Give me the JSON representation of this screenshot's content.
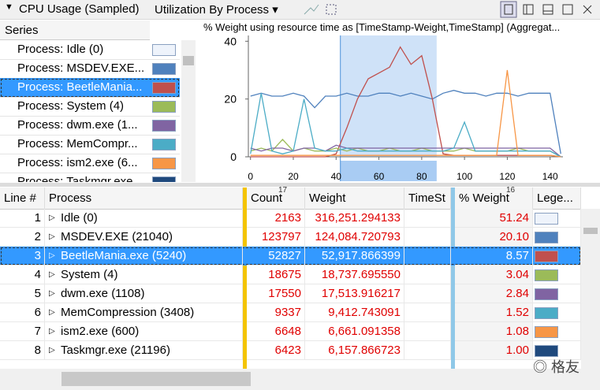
{
  "toolbar": {
    "title": "CPU Usage (Sampled)",
    "view": "Utilization By Process"
  },
  "series_header": "Series",
  "chart_data": {
    "type": "line",
    "title": "% Weight using resource time as [TimeStamp-Weight,TimeStamp] (Aggregat...",
    "x": [
      0,
      5,
      10,
      15,
      20,
      25,
      30,
      35,
      40,
      45,
      50,
      55,
      60,
      65,
      70,
      75,
      80,
      85,
      90,
      95,
      100,
      105,
      110,
      115,
      120,
      125,
      130,
      135,
      140,
      145
    ],
    "series": [
      {
        "name": "Process: Idle (0)",
        "color": "#eef3fb"
      },
      {
        "name": "Process: MSDEV.EXE...",
        "color": "#4f81bd",
        "values": [
          21,
          22,
          21,
          21,
          22,
          21,
          17,
          21,
          21,
          22,
          21,
          21,
          22,
          22,
          21,
          22,
          21,
          20,
          22,
          23,
          22,
          22,
          21,
          22,
          22,
          21,
          22,
          22,
          22,
          1
        ]
      },
      {
        "name": "Process: BeetleMania...",
        "color": "#c0504d",
        "values": [
          0,
          0,
          0,
          0,
          0,
          0,
          0,
          0,
          1,
          10,
          20,
          27,
          29,
          31,
          38,
          32,
          35,
          20,
          1,
          0.5,
          0.5,
          0.5,
          0.5,
          0.5,
          0.5,
          0.5,
          0.5,
          0.5,
          0.5,
          0
        ]
      },
      {
        "name": "Process: System (4)",
        "color": "#9bbb59",
        "values": [
          2,
          3,
          2,
          6,
          2,
          3,
          2,
          2,
          3,
          2,
          3,
          2,
          2,
          3,
          2,
          2,
          3,
          2,
          2,
          2,
          3,
          2,
          2,
          2,
          2,
          3,
          2,
          2,
          2,
          0
        ]
      },
      {
        "name": "Process: dwm.exe (1...",
        "color": "#8064a2",
        "values": [
          3,
          2,
          3,
          3,
          2,
          3,
          3,
          2,
          4,
          3,
          3,
          3,
          3,
          3,
          3,
          3,
          3,
          3,
          3,
          3,
          3,
          3,
          3,
          3,
          3,
          3,
          3,
          3,
          3,
          0
        ]
      },
      {
        "name": "Process: MemCompr...",
        "color": "#4bacc6",
        "values": [
          1,
          22,
          2,
          1,
          2,
          20,
          3,
          2,
          2,
          3,
          2,
          2,
          2,
          2,
          2,
          2,
          2,
          2,
          2,
          3,
          12,
          2,
          2,
          2,
          2,
          2,
          2,
          2,
          2,
          0
        ]
      },
      {
        "name": "Process: ism2.exe (6...",
        "color": "#f79646",
        "values": [
          0.5,
          0.5,
          0.5,
          0.5,
          0.5,
          0.5,
          0.5,
          0.5,
          0.5,
          0.5,
          0.5,
          0.5,
          0.5,
          0.5,
          0.5,
          0.5,
          0.5,
          0.5,
          0.5,
          0.5,
          0.5,
          0.5,
          0.5,
          0.5,
          30,
          0.5,
          0.5,
          0.5,
          0.5,
          0
        ]
      },
      {
        "name": "Process: Taskmgr.exe",
        "color": "#1f497d"
      }
    ],
    "selected_series": 2,
    "xlim": [
      -1,
      146
    ],
    "ylim": [
      0,
      42
    ],
    "xticks": [
      0,
      20,
      40,
      60,
      80,
      100,
      120,
      140
    ],
    "yticks": [
      0,
      20,
      40
    ],
    "selection": [
      42,
      87
    ]
  },
  "table": {
    "columns": [
      "Line #",
      "Process",
      "Count",
      "Weight",
      "TimeSt",
      "% Weight",
      "Lege..."
    ],
    "sort_indicators": {
      "count": "17",
      "weight_pct": "16"
    },
    "selected": 2,
    "rows": [
      [
        "1",
        "Idle (0)",
        "2163",
        "316,251.294133",
        "51.24",
        "#eef3fb"
      ],
      [
        "2",
        "MSDEV.EXE (21040)",
        "123797",
        "124,084.720793",
        "20.10",
        "#4f81bd"
      ],
      [
        "3",
        "BeetleMania.exe (5240)",
        "52827",
        "52,917.866399",
        "8.57",
        "#c0504d"
      ],
      [
        "4",
        "System (4)",
        "18675",
        "18,737.695550",
        "3.04",
        "#9bbb59"
      ],
      [
        "5",
        "dwm.exe (1108)",
        "17550",
        "17,513.916217",
        "2.84",
        "#8064a2"
      ],
      [
        "6",
        "MemCompression (3408)",
        "9337",
        "9,412.743091",
        "1.52",
        "#4bacc6"
      ],
      [
        "7",
        "ism2.exe (600)",
        "6648",
        "6,661.091358",
        "1.08",
        "#f79646"
      ],
      [
        "8",
        "Taskmgr.exe (21196)",
        "6423",
        "6,157.866723",
        "1.00",
        "#1f497d"
      ]
    ]
  },
  "watermark": "格友"
}
